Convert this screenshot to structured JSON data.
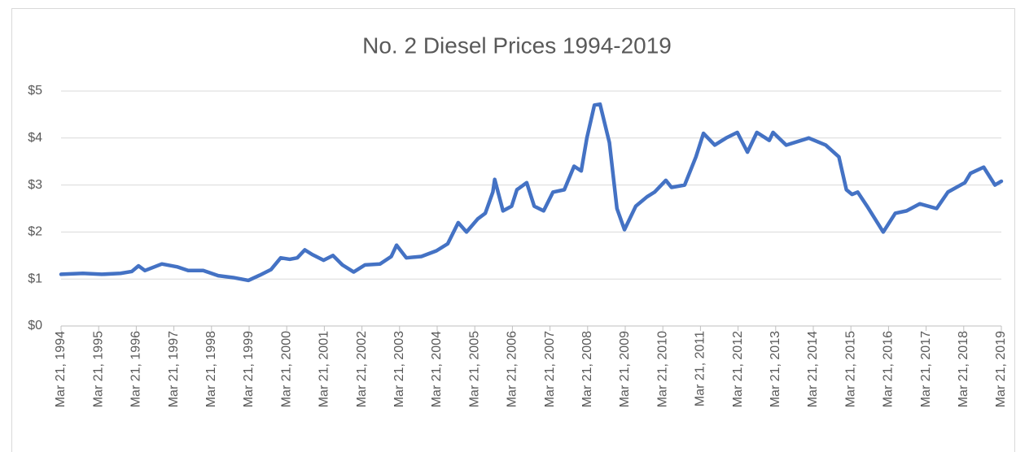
{
  "chart_data": {
    "type": "line",
    "title": "No. 2 Diesel Prices 1994-2019",
    "x": [
      1994.22,
      1994.8,
      1995.3,
      1995.8,
      1996.1,
      1996.28,
      1996.45,
      1996.9,
      1997.3,
      1997.6,
      1998.0,
      1998.4,
      1998.8,
      1999.2,
      1999.5,
      1999.8,
      2000.06,
      2000.3,
      2000.5,
      2000.7,
      2000.9,
      2001.2,
      2001.45,
      2001.7,
      2002.0,
      2002.3,
      2002.7,
      2003.0,
      2003.14,
      2003.4,
      2003.8,
      2004.2,
      2004.5,
      2004.78,
      2005.0,
      2005.3,
      2005.5,
      2005.7,
      2005.75,
      2005.97,
      2006.2,
      2006.34,
      2006.6,
      2006.8,
      2007.05,
      2007.3,
      2007.6,
      2007.86,
      2008.05,
      2008.2,
      2008.4,
      2008.55,
      2008.8,
      2009.0,
      2009.2,
      2009.5,
      2009.8,
      2010.0,
      2010.3,
      2010.45,
      2010.8,
      2011.1,
      2011.3,
      2011.6,
      2011.9,
      2012.2,
      2012.47,
      2012.72,
      2013.05,
      2013.15,
      2013.5,
      2014.1,
      2014.55,
      2014.9,
      2015.1,
      2015.25,
      2015.4,
      2015.65,
      2016.08,
      2016.4,
      2016.7,
      2017.05,
      2017.5,
      2017.8,
      2018.25,
      2018.4,
      2018.75,
      2019.05,
      2019.22
    ],
    "series": [
      {
        "name": "No. 2 Diesel",
        "color": "#4472c4",
        "values": [
          1.1,
          1.12,
          1.1,
          1.12,
          1.16,
          1.28,
          1.18,
          1.32,
          1.26,
          1.18,
          1.18,
          1.07,
          1.03,
          0.97,
          1.08,
          1.2,
          1.45,
          1.42,
          1.45,
          1.62,
          1.52,
          1.4,
          1.5,
          1.3,
          1.15,
          1.3,
          1.32,
          1.48,
          1.72,
          1.45,
          1.48,
          1.6,
          1.75,
          2.2,
          2.0,
          2.28,
          2.4,
          2.85,
          3.12,
          2.45,
          2.55,
          2.9,
          3.05,
          2.55,
          2.45,
          2.85,
          2.9,
          3.4,
          3.3,
          4.0,
          4.7,
          4.72,
          3.9,
          2.5,
          2.05,
          2.55,
          2.75,
          2.85,
          3.1,
          2.95,
          3.0,
          3.6,
          4.1,
          3.85,
          4.0,
          4.12,
          3.7,
          4.12,
          3.95,
          4.12,
          3.85,
          4.0,
          3.85,
          3.6,
          2.9,
          2.8,
          2.85,
          2.55,
          2.0,
          2.4,
          2.45,
          2.6,
          2.5,
          2.85,
          3.05,
          3.25,
          3.38,
          3.0,
          3.08
        ]
      }
    ],
    "xlim": [
      1994.22,
      2019.22
    ],
    "xticks": [
      {
        "value": 1994.22,
        "label": "Mar 21, 1994"
      },
      {
        "value": 1995.22,
        "label": "Mar 21, 1995"
      },
      {
        "value": 1996.22,
        "label": "Mar 21, 1996"
      },
      {
        "value": 1997.22,
        "label": "Mar 21, 1997"
      },
      {
        "value": 1998.22,
        "label": "Mar 21, 1998"
      },
      {
        "value": 1999.22,
        "label": "Mar 21, 1999"
      },
      {
        "value": 2000.22,
        "label": "Mar 21, 2000"
      },
      {
        "value": 2001.22,
        "label": "Mar 21, 2001"
      },
      {
        "value": 2002.22,
        "label": "Mar 21, 2002"
      },
      {
        "value": 2003.22,
        "label": "Mar 21, 2003"
      },
      {
        "value": 2004.22,
        "label": "Mar 21, 2004"
      },
      {
        "value": 2005.22,
        "label": "Mar 21, 2005"
      },
      {
        "value": 2006.22,
        "label": "Mar 21, 2006"
      },
      {
        "value": 2007.22,
        "label": "Mar 21, 2007"
      },
      {
        "value": 2008.22,
        "label": "Mar 21, 2008"
      },
      {
        "value": 2009.22,
        "label": "Mar 21, 2009"
      },
      {
        "value": 2010.22,
        "label": "Mar 21, 2010"
      },
      {
        "value": 2011.22,
        "label": "Mar 21, 2011"
      },
      {
        "value": 2012.22,
        "label": "Mar 21, 2012"
      },
      {
        "value": 2013.22,
        "label": "Mar 21, 2013"
      },
      {
        "value": 2014.22,
        "label": "Mar 21, 2014"
      },
      {
        "value": 2015.22,
        "label": "Mar 21, 2015"
      },
      {
        "value": 2016.22,
        "label": "Mar 21, 2016"
      },
      {
        "value": 2017.22,
        "label": "Mar 21, 2017"
      },
      {
        "value": 2018.22,
        "label": "Mar 21, 2018"
      },
      {
        "value": 2019.22,
        "label": "Mar 21, 2019"
      }
    ],
    "ylim": [
      0,
      5
    ],
    "yticks": [
      {
        "value": 0,
        "label": "$0"
      },
      {
        "value": 1,
        "label": "$1"
      },
      {
        "value": 2,
        "label": "$2"
      },
      {
        "value": 3,
        "label": "$3"
      },
      {
        "value": 4,
        "label": "$4"
      },
      {
        "value": 5,
        "label": "$5"
      }
    ],
    "grid": true
  }
}
